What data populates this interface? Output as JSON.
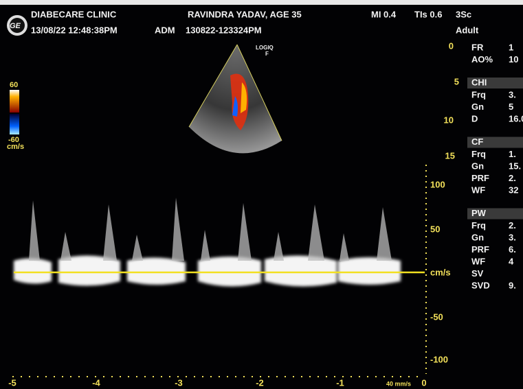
{
  "header": {
    "clinic": "DIABECARE CLINIC",
    "datetime": "13/08/22 12:48:38PM",
    "operator": "ADM",
    "patient": "RAVINDRA YADAV, AGE 35",
    "exam_id": "130822-123324PM",
    "mi": "MI 0.4",
    "tis": "TIs 0.6",
    "probe": "3Sc",
    "preset": "Adult"
  },
  "color_scale": {
    "max": "60",
    "min": "-60",
    "unit": "cm/s"
  },
  "image_label": [
    "LOGIQ",
    "F"
  ],
  "depth_ticks": [
    "0",
    "5",
    "10",
    "15"
  ],
  "params": [
    {
      "rows": [
        {
          "label": "FR",
          "value": "1"
        },
        {
          "label": "AO%",
          "value": "10"
        }
      ]
    },
    {
      "title": "CHI",
      "rows": [
        {
          "label": "Frq",
          "value": "3."
        },
        {
          "label": "Gn",
          "value": "5"
        },
        {
          "label": "D",
          "value": "16.0"
        }
      ]
    },
    {
      "title": "CF",
      "rows": [
        {
          "label": "Frq",
          "value": "1."
        },
        {
          "label": "Gn",
          "value": "15."
        },
        {
          "label": "PRF",
          "value": "2."
        },
        {
          "label": "WF",
          "value": "32"
        }
      ]
    },
    {
      "title": "PW",
      "rows": [
        {
          "label": "Frq",
          "value": "2."
        },
        {
          "label": "Gn",
          "value": "3."
        },
        {
          "label": "PRF",
          "value": "6."
        },
        {
          "label": "WF",
          "value": "4"
        },
        {
          "label": "SV",
          "value": ""
        },
        {
          "label": "SVD",
          "value": "9."
        }
      ]
    }
  ],
  "velocity_scale": [
    "100",
    "50",
    "cm/s",
    "-50",
    "-100"
  ],
  "time_axis": {
    "labels": [
      "-5",
      "-4",
      "-3",
      "-2",
      "-1",
      "0"
    ],
    "sweep": "40 mm/s"
  }
}
